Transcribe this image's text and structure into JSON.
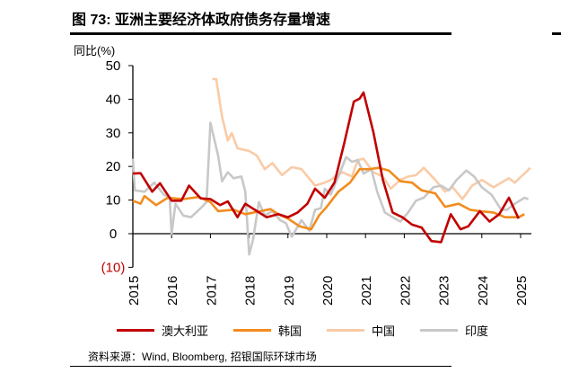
{
  "header": {
    "title": "图 73: 亚洲主要经济体政府债务存量增速"
  },
  "source": "资料来源：Wind, Bloomberg, 招银国际环球市场",
  "chart_data": {
    "type": "line",
    "title": "",
    "ylabel": "同比(%)",
    "ylim": [
      -10,
      50
    ],
    "yticks": [
      {
        "value": 50,
        "label": "50"
      },
      {
        "value": 40,
        "label": "40"
      },
      {
        "value": 30,
        "label": "30"
      },
      {
        "value": 20,
        "label": "20"
      },
      {
        "value": 10,
        "label": "10"
      },
      {
        "value": 0,
        "label": "0"
      },
      {
        "value": -10,
        "label": "(10)",
        "color": "#c00000"
      }
    ],
    "xlim": [
      2015,
      2025.3
    ],
    "xticks": [
      "2015",
      "2016",
      "2017",
      "2018",
      "2019",
      "2020",
      "2021",
      "2022",
      "2023",
      "2024",
      "2025"
    ],
    "grid": false,
    "legend_position": "bottom",
    "series": [
      {
        "name": "澳大利亚",
        "color": "#c00000",
        "x": [
          2015.0,
          2015.2,
          2015.5,
          2015.7,
          2016.0,
          2016.25,
          2016.45,
          2016.75,
          2017.0,
          2017.25,
          2017.45,
          2017.7,
          2017.9,
          2018.2,
          2018.45,
          2018.75,
          2019.0,
          2019.25,
          2019.5,
          2019.7,
          2019.95,
          2020.2,
          2020.45,
          2020.7,
          2020.85,
          2020.95,
          2021.2,
          2021.45,
          2021.7,
          2021.95,
          2022.2,
          2022.45,
          2022.7,
          2022.95,
          2023.2,
          2023.45,
          2023.65,
          2023.95,
          2024.2,
          2024.45,
          2024.7,
          2024.95
        ],
        "y": [
          17.9,
          18,
          12.5,
          15,
          9.8,
          9.8,
          14.3,
          10.5,
          10.3,
          8.5,
          9.6,
          4.9,
          8.9,
          6.7,
          4.9,
          5.8,
          4.9,
          6.3,
          8.9,
          13.4,
          10.7,
          15.2,
          26.8,
          39.3,
          40.2,
          42,
          30.4,
          16,
          6.3,
          4.9,
          2.7,
          1.8,
          -2.2,
          -2.5,
          5.8,
          1.3,
          2.2,
          6.7,
          3.6,
          5.8,
          10.7,
          4.5
        ]
      },
      {
        "name": "韩国",
        "color": "#f28c1e",
        "x": [
          2015.0,
          2015.2,
          2015.3,
          2015.6,
          2015.9,
          2016.3,
          2016.7,
          2017.0,
          2017.2,
          2017.6,
          2017.9,
          2018.3,
          2018.55,
          2018.75,
          2019.0,
          2019.3,
          2019.6,
          2019.8,
          2020.0,
          2020.3,
          2020.6,
          2020.85,
          2021.1,
          2021.35,
          2021.6,
          2021.9,
          2022.2,
          2022.45,
          2022.8,
          2023.05,
          2023.4,
          2023.7,
          2023.95,
          2024.3,
          2024.6,
          2024.95,
          2025.1
        ],
        "y": [
          9.8,
          8.9,
          11.2,
          8.5,
          10.7,
          10.3,
          10.9,
          9.4,
          6.7,
          7.1,
          5.8,
          6.7,
          7.3,
          5.8,
          4.5,
          2.2,
          1.3,
          5.4,
          8,
          12.5,
          15.2,
          19.2,
          19.2,
          19.6,
          18.8,
          15.6,
          15.2,
          12.9,
          12,
          8,
          8.9,
          7.1,
          6.7,
          6.3,
          4.9,
          4.9,
          5.8
        ]
      },
      {
        "name": "中国",
        "color": "#f9cba6",
        "x": [
          2017.05,
          2017.15,
          2017.3,
          2017.45,
          2017.55,
          2017.7,
          2018.0,
          2018.2,
          2018.4,
          2018.6,
          2018.85,
          2019.1,
          2019.35,
          2019.7,
          2019.95,
          2020.1,
          2020.4,
          2020.65,
          2020.8,
          2020.95,
          2021.2,
          2021.45,
          2021.65,
          2021.9,
          2022.1,
          2022.3,
          2022.5,
          2022.8,
          2023.05,
          2023.25,
          2023.5,
          2023.75,
          2024.0,
          2024.3,
          2024.5,
          2024.7,
          2024.85,
          2025.1,
          2025.25
        ],
        "y": [
          46,
          46,
          34.8,
          27.7,
          29.9,
          25.4,
          24.6,
          23.2,
          19.2,
          21,
          17.4,
          19.8,
          19.2,
          14.3,
          15.2,
          16,
          18.3,
          17,
          21.9,
          22.3,
          18.3,
          17,
          13.4,
          16,
          17,
          17.4,
          19.6,
          16,
          12.5,
          13.8,
          10.3,
          14.3,
          16,
          13.8,
          15.2,
          16.5,
          15.2,
          17.9,
          19.6
        ]
      },
      {
        "name": "印度",
        "color": "#c8c8c8",
        "x": [
          2015.0,
          2015.05,
          2015.3,
          2015.55,
          2015.8,
          2015.95,
          2016.0,
          2016.1,
          2016.3,
          2016.5,
          2016.75,
          2016.9,
          2017.0,
          2017.2,
          2017.3,
          2017.45,
          2017.6,
          2017.8,
          2017.9,
          2018.0,
          2018.1,
          2018.25,
          2018.4,
          2018.6,
          2018.8,
          2018.95,
          2019.1,
          2019.35,
          2019.55,
          2019.7,
          2019.85,
          2019.95,
          2020.1,
          2020.3,
          2020.5,
          2020.65,
          2020.8,
          2020.95,
          2021.15,
          2021.3,
          2021.5,
          2021.7,
          2021.9,
          2022.1,
          2022.3,
          2022.5,
          2022.75,
          2022.95,
          2023.15,
          2023.35,
          2023.6,
          2023.8,
          2024.0,
          2024.25,
          2024.5,
          2024.65,
          2024.85,
          2025.1,
          2025.2
        ],
        "y": [
          22.3,
          12.9,
          12.5,
          15.2,
          11.6,
          10.7,
          0,
          8.9,
          5.4,
          4.9,
          7.6,
          9.4,
          33,
          23.2,
          15.6,
          18.3,
          16.5,
          17,
          12.5,
          -6.2,
          -1.8,
          9.4,
          5.4,
          6.7,
          4,
          3.1,
          -0.9,
          4,
          0.9,
          7.1,
          7.6,
          13.4,
          11.6,
          17,
          22.8,
          21.4,
          21.9,
          17.9,
          19.2,
          12.5,
          6.3,
          4.9,
          3.6,
          6.3,
          9.8,
          10.7,
          13.8,
          14.3,
          12.9,
          16,
          18.8,
          17,
          13.8,
          11.6,
          7.1,
          7.1,
          8.9,
          10.7,
          10.3
        ]
      }
    ]
  }
}
